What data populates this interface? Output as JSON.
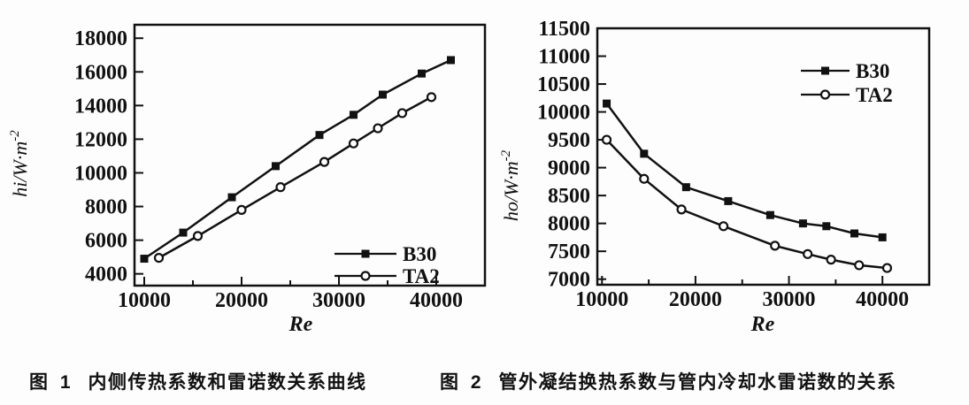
{
  "page": {
    "background": "#fdfdfd",
    "ink": "#111111"
  },
  "figures": [
    {
      "caption_prefix": "图 1",
      "caption_text": "内侧传热系数和雷诺数关系曲线"
    },
    {
      "caption_prefix": "图 2",
      "caption_text": "管外凝结换热系数与管内冷却水雷诺数的关系"
    }
  ],
  "chart_data": [
    {
      "type": "line",
      "title": "",
      "xlabel": "Re",
      "ylabel": "hi/W·m⁻²",
      "xlim": [
        9000,
        45000
      ],
      "ylim": [
        3300,
        18800
      ],
      "xticks": [
        10000,
        20000,
        30000,
        40000
      ],
      "yticks": [
        4000,
        6000,
        8000,
        10000,
        12000,
        14000,
        16000,
        18000
      ],
      "grid": false,
      "legend_position": "bottom-right",
      "series": [
        {
          "name": "B30",
          "marker": "filled-square",
          "points": [
            [
              10000,
              4900
            ],
            [
              14000,
              6450
            ],
            [
              19000,
              8550
            ],
            [
              23500,
              10400
            ],
            [
              28000,
              12250
            ],
            [
              31500,
              13450
            ],
            [
              34500,
              14650
            ],
            [
              38500,
              15900
            ],
            [
              41500,
              16700
            ]
          ]
        },
        {
          "name": "TA2",
          "marker": "open-circle",
          "points": [
            [
              11500,
              4950
            ],
            [
              15500,
              6250
            ],
            [
              20000,
              7800
            ],
            [
              24000,
              9150
            ],
            [
              28500,
              10650
            ],
            [
              31500,
              11750
            ],
            [
              34000,
              12650
            ],
            [
              36500,
              13550
            ],
            [
              39500,
              14500
            ]
          ]
        }
      ]
    },
    {
      "type": "line",
      "title": "",
      "xlabel": "Re",
      "ylabel": "ho/W·m⁻²",
      "xlim": [
        9500,
        45000
      ],
      "ylim": [
        6900,
        11500
      ],
      "xticks": [
        10000,
        20000,
        30000,
        40000
      ],
      "yticks": [
        7000,
        7500,
        8000,
        8500,
        9000,
        9500,
        10000,
        10500,
        11000,
        11500
      ],
      "grid": false,
      "legend_position": "top-right",
      "series": [
        {
          "name": "B30",
          "marker": "filled-square",
          "points": [
            [
              10500,
              10150
            ],
            [
              14500,
              9250
            ],
            [
              19000,
              8650
            ],
            [
              23500,
              8400
            ],
            [
              28000,
              8150
            ],
            [
              31500,
              8000
            ],
            [
              34000,
              7950
            ],
            [
              37000,
              7820
            ],
            [
              40000,
              7750
            ]
          ]
        },
        {
          "name": "TA2",
          "marker": "open-circle",
          "points": [
            [
              10500,
              9500
            ],
            [
              14500,
              8800
            ],
            [
              18500,
              8250
            ],
            [
              23000,
              7950
            ],
            [
              28500,
              7600
            ],
            [
              32000,
              7450
            ],
            [
              34500,
              7350
            ],
            [
              37500,
              7250
            ],
            [
              40500,
              7200
            ]
          ]
        }
      ]
    }
  ]
}
